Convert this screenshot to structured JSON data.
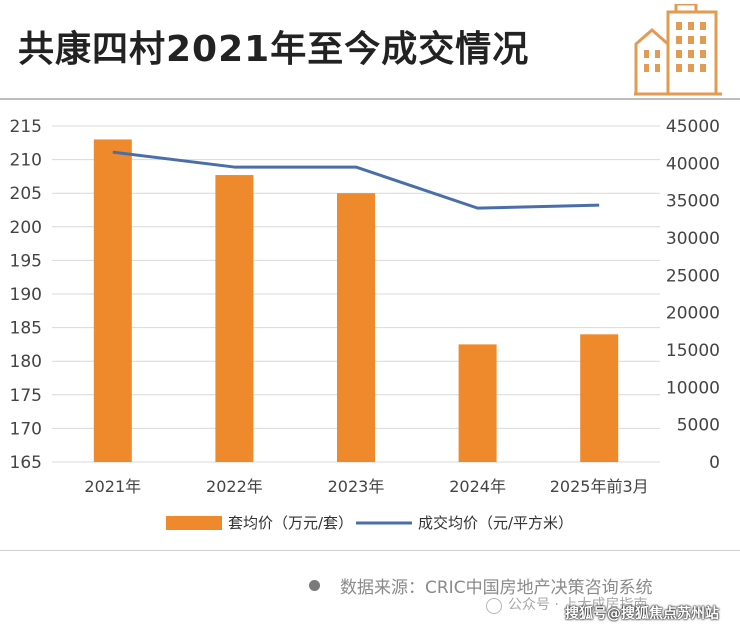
{
  "title": "共康四村2021年至今成交情况",
  "chart_data": {
    "type": "bar",
    "categories": [
      "2021年",
      "2022年",
      "2023年",
      "2024年",
      "2025年前3月"
    ],
    "series": [
      {
        "name": "套均价（万元/套）",
        "type": "bar",
        "axis": "left",
        "values": [
          213,
          207.7,
          205,
          182.5,
          184
        ]
      },
      {
        "name": "成交均价（元/平方米）",
        "type": "line",
        "axis": "right",
        "values": [
          41500,
          39500,
          39500,
          34000,
          34400
        ]
      }
    ],
    "y_left": {
      "ticks": [
        "215",
        "210",
        "205",
        "200",
        "195",
        "190",
        "185",
        "180",
        "175",
        "170",
        "165"
      ],
      "min": 165,
      "max": 215
    },
    "y_right": {
      "ticks": [
        "45000",
        "40000",
        "35000",
        "30000",
        "25000",
        "20000",
        "15000",
        "10000",
        "5000",
        "0"
      ],
      "min": 0,
      "max": 45000
    },
    "grid": true,
    "legend": "bottom",
    "colors": {
      "bar": "#ee8a2c",
      "line": "#4a6fa8",
      "grid": "#d9d9d9"
    }
  },
  "footer": {
    "source": "数据来源：CRIC中国房地产决策咨询系统",
    "watermark_1": "公众号 · 上大成房指南",
    "watermark_2": "搜狐号@搜狐焦点苏州站"
  }
}
